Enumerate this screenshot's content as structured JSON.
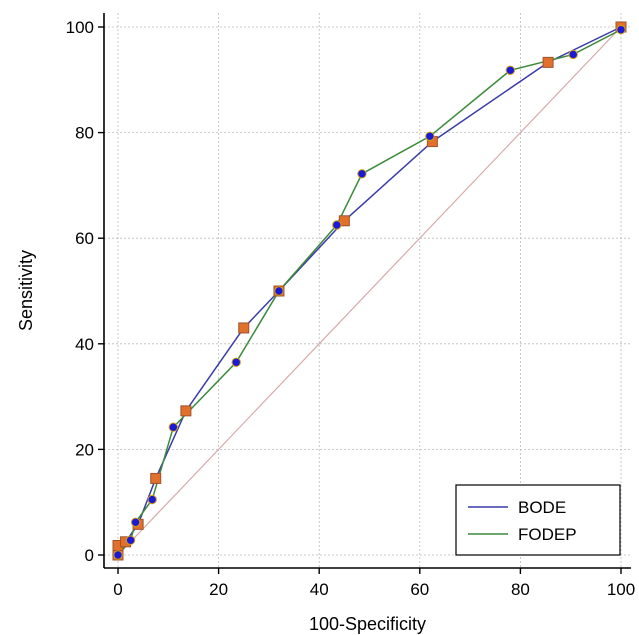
{
  "chart_data": {
    "type": "line",
    "title": "",
    "xlabel": "100-Specificity",
    "ylabel": "Sensitivity",
    "xlim": [
      0,
      100
    ],
    "ylim": [
      0,
      100
    ],
    "x_ticks": [
      "0",
      "20",
      "40",
      "60",
      "80",
      "100"
    ],
    "y_ticks": [
      "0",
      "20",
      "40",
      "60",
      "80",
      "100"
    ],
    "grid": true,
    "legend_position": "bottom-right",
    "reference_line": {
      "from": [
        0,
        0
      ],
      "to": [
        100,
        100
      ],
      "color": "#d9a9a9"
    },
    "series": [
      {
        "name": "BODE",
        "line_color": "#3a3aa8",
        "marker": "square",
        "marker_color": "#e0702a",
        "marker_edge": "#a0522d",
        "points": [
          {
            "x": 0,
            "y": 0
          },
          {
            "x": 0,
            "y": 1.8
          },
          {
            "x": 1.5,
            "y": 2.5
          },
          {
            "x": 4,
            "y": 5.8
          },
          {
            "x": 7.5,
            "y": 14.5
          },
          {
            "x": 13.5,
            "y": 27.3
          },
          {
            "x": 25,
            "y": 43
          },
          {
            "x": 32,
            "y": 50
          },
          {
            "x": 45,
            "y": 63.3
          },
          {
            "x": 62.5,
            "y": 78.3
          },
          {
            "x": 85.5,
            "y": 93.3
          },
          {
            "x": 100,
            "y": 100
          }
        ]
      },
      {
        "name": "FODEP",
        "line_color": "#3a8a3a",
        "marker": "circle",
        "marker_color": "#1a1ad6",
        "marker_edge": "#d4a017",
        "points": [
          {
            "x": 0,
            "y": 0
          },
          {
            "x": 2.5,
            "y": 2.8
          },
          {
            "x": 3.5,
            "y": 6.2
          },
          {
            "x": 6.8,
            "y": 10.5
          },
          {
            "x": 11,
            "y": 24.2
          },
          {
            "x": 23.5,
            "y": 36.5
          },
          {
            "x": 32,
            "y": 50
          },
          {
            "x": 43.5,
            "y": 62.5
          },
          {
            "x": 48.5,
            "y": 72.2
          },
          {
            "x": 62,
            "y": 79.3
          },
          {
            "x": 78,
            "y": 91.8
          },
          {
            "x": 90.5,
            "y": 94.8
          },
          {
            "x": 100,
            "y": 99.5
          }
        ]
      }
    ]
  }
}
